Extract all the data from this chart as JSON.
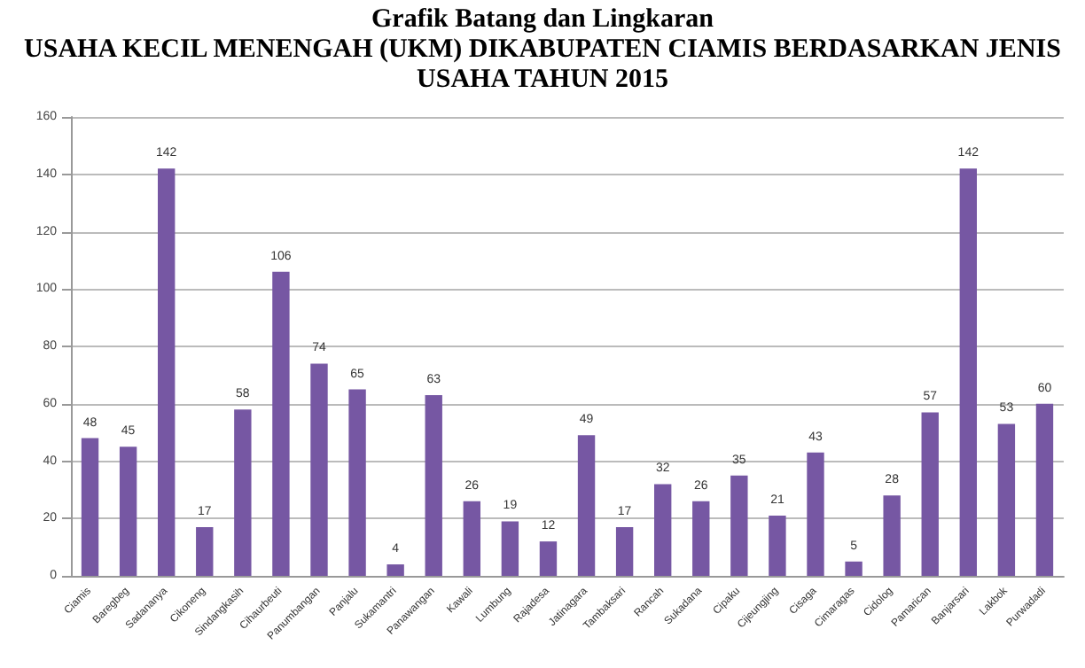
{
  "chart_data": {
    "type": "bar",
    "title": "Grafik Batang dan Lingkaran",
    "subtitle": "USAHA KECIL MENENGAH (UKM) DIKABUPATEN CIAMIS BERDASARKAN JENIS USAHA TAHUN 2015",
    "categories": [
      "Ciamis",
      "Baregbeg",
      "Sadananya",
      "Cikoneng",
      "Sindangkasih",
      "Cihaurbeuti",
      "Panumbangan",
      "Panjalu",
      "Sukamantri",
      "Panawangan",
      "Kawali",
      "Lumbung",
      "Rajadesa",
      "Jatinagara",
      "Tambaksari",
      "Rancah",
      "Sukadana",
      "Cipaku",
      "Cijeungjing",
      "Cisaga",
      "Cimaragas",
      "Cidolog",
      "Pamarican",
      "Banjarsari",
      "Lakbok",
      "Purwadadi"
    ],
    "values": [
      48,
      45,
      142,
      17,
      58,
      106,
      74,
      65,
      4,
      63,
      26,
      19,
      12,
      49,
      17,
      32,
      26,
      35,
      21,
      43,
      5,
      28,
      57,
      142,
      53,
      60
    ],
    "color": "#7657a3",
    "ylim": [
      0,
      160
    ],
    "yticks": [
      0,
      20,
      40,
      60,
      80,
      100,
      120,
      140,
      160
    ],
    "grid": "y",
    "data_labels": true
  }
}
